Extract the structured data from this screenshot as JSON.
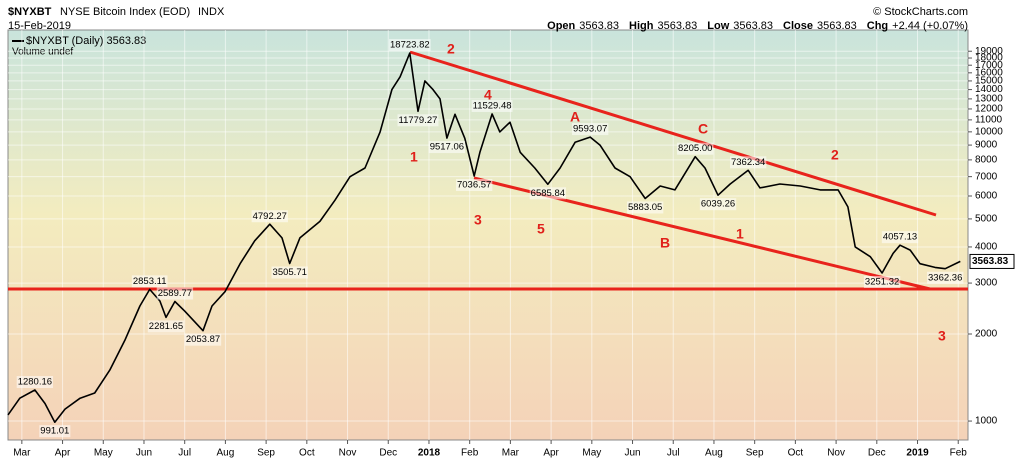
{
  "header": {
    "symbol": "$NYXBT",
    "title": "NYSE Bitcoin Index (EOD)",
    "exchange": "INDX",
    "date": "15-Feb-2019",
    "copyright": "© StockCharts.com",
    "quote": [
      {
        "label": "Open",
        "value": 3563.83
      },
      {
        "label": "High",
        "value": 3563.83
      },
      {
        "label": "Low",
        "value": 3563.83
      },
      {
        "label": "Close",
        "value": 3563.83
      },
      {
        "label": "Chg",
        "value": "+2.44 (+0.07%)"
      }
    ]
  },
  "chart_data": {
    "type": "line",
    "log_scale": true,
    "grid": true,
    "series": [
      {
        "name": "$NYXBT (Daily) 3563.83",
        "color": "#000000",
        "x": [
          -0.34,
          -0.05,
          0.32,
          0.57,
          0.81,
          1.06,
          1.43,
          1.79,
          2.16,
          2.53,
          2.9,
          3.14,
          3.39,
          3.54,
          3.76,
          4.0,
          4.45,
          4.67,
          4.99,
          5.36,
          5.72,
          6.09,
          6.39,
          6.58,
          6.83,
          7.32,
          7.69,
          8.06,
          8.43,
          8.8,
          9.09,
          9.29,
          9.53,
          9.73,
          9.9,
          10.1,
          10.27,
          10.44,
          10.64,
          10.88,
          11.11,
          11.25,
          11.55,
          11.74,
          11.99,
          12.24,
          12.6,
          12.92,
          13.22,
          13.59,
          13.96,
          14.2,
          14.57,
          14.94,
          15.31,
          15.68,
          16.04,
          16.54,
          16.78,
          17.1,
          17.4,
          17.84,
          18.13,
          18.62,
          19.12,
          19.61,
          20.05,
          20.29,
          20.47,
          20.84,
          21.13,
          21.4,
          21.57,
          21.82,
          22.06,
          22.43,
          22.68,
          23.05
        ],
        "values": [
          1050,
          1200,
          1280.16,
          1150,
          991.01,
          1100,
          1200,
          1250,
          1500,
          1900,
          2500,
          2853.11,
          2600,
          2281.65,
          2589.77,
          2400,
          2053.87,
          2500,
          2800,
          3500,
          4200,
          4792.27,
          4300,
          3505.71,
          4300,
          4900,
          5800,
          7000,
          7500,
          10000,
          14000,
          15500,
          18723.82,
          11779.27,
          15000,
          14000,
          13000,
          9517.06,
          11500,
          9500,
          7036.57,
          8500,
          11529.48,
          10000,
          10800,
          8500,
          7500,
          6585.84,
          7500,
          9200,
          9593.07,
          9000,
          7500,
          7000,
          5883.05,
          6500,
          6300,
          8205,
          7500,
          6039.26,
          6600,
          7362.34,
          6400,
          6600,
          6500,
          6300,
          6300,
          5500,
          4000,
          3700,
          3251.32,
          3800,
          4057.13,
          3900,
          3500,
          3400,
          3362.36,
          3563.83
        ],
        "value_labels": [
          null,
          null,
          "1280.16",
          null,
          "991.01",
          null,
          null,
          null,
          null,
          null,
          null,
          "2853.11",
          null,
          "2281.65",
          "2589.77",
          null,
          "2053.87",
          null,
          null,
          null,
          null,
          "4792.27",
          null,
          "3505.71",
          null,
          null,
          null,
          null,
          null,
          null,
          null,
          null,
          "18723.82",
          "11779.27",
          null,
          null,
          null,
          "9517.06",
          null,
          null,
          "7036.57",
          null,
          "11529.48",
          null,
          null,
          null,
          null,
          "6585.84",
          null,
          null,
          "9593.07",
          null,
          null,
          null,
          "5883.05",
          null,
          null,
          "8205.00",
          null,
          "6039.26",
          null,
          "7362.34",
          null,
          null,
          null,
          null,
          null,
          null,
          null,
          null,
          "3251.32",
          null,
          "4057.13",
          null,
          null,
          null,
          "3362.36",
          "3563.83"
        ]
      },
      {
        "name": "Volume undef",
        "color": "#3355cc"
      }
    ],
    "wave_labels": [
      "2",
      "1",
      "4",
      "3",
      "5",
      "A",
      "C",
      "B",
      "1",
      "2",
      "3"
    ],
    "xlim": [
      -0.34,
      23.24
    ],
    "xticks": [
      {
        "value": 0,
        "label": "Mar"
      },
      {
        "value": 1,
        "label": "Apr"
      },
      {
        "value": 2,
        "label": "May"
      },
      {
        "value": 3,
        "label": "Jun"
      },
      {
        "value": 4,
        "label": "Jul"
      },
      {
        "value": 5,
        "label": "Aug"
      },
      {
        "value": 6,
        "label": "Sep"
      },
      {
        "value": 7,
        "label": "Oct"
      },
      {
        "value": 8,
        "label": "Nov"
      },
      {
        "value": 9,
        "label": "Dec"
      },
      {
        "value": 10,
        "label": "2018"
      },
      {
        "value": 11,
        "label": "Feb"
      },
      {
        "value": 12,
        "label": "Mar"
      },
      {
        "value": 13,
        "label": "Apr"
      },
      {
        "value": 14,
        "label": "May"
      },
      {
        "value": 15,
        "label": "Jun"
      },
      {
        "value": 16,
        "label": "Jul"
      },
      {
        "value": 17,
        "label": "Aug"
      },
      {
        "value": 18,
        "label": "Sep"
      },
      {
        "value": 19,
        "label": "Oct"
      },
      {
        "value": 20,
        "label": "Nov"
      },
      {
        "value": 21,
        "label": "Dec"
      },
      {
        "value": 22,
        "label": "2019"
      },
      {
        "value": 23,
        "label": "Feb"
      }
    ],
    "ylim": [
      860,
      22500
    ],
    "yticks": [
      1000,
      2000,
      3000,
      4000,
      5000,
      6000,
      7000,
      8000,
      9000,
      10000,
      11000,
      12000,
      13000,
      14000,
      15000,
      16000,
      17000,
      18000,
      19000
    ]
  }
}
